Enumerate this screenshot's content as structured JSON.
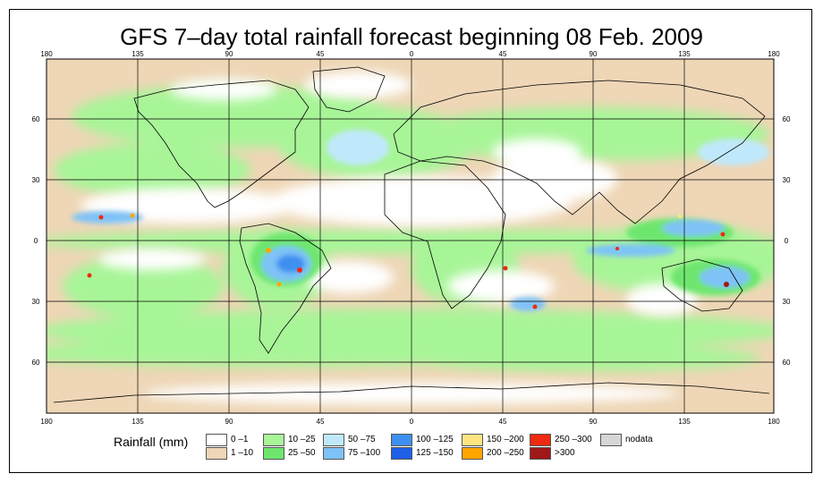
{
  "title": "GFS 7–day total rainfall forecast beginning 08 Feb. 2009",
  "axes": {
    "top_ticks": [
      "180",
      "135",
      "90",
      "45",
      "0",
      "45",
      "90",
      "135",
      "180"
    ],
    "bottom_ticks": [
      "180",
      "135",
      "90",
      "45",
      "0",
      "45",
      "90",
      "135",
      "180"
    ],
    "left_ticks": [
      "60",
      "30",
      "0",
      "30",
      "60"
    ],
    "right_ticks": [
      "60",
      "30",
      "0",
      "30",
      "60"
    ]
  },
  "legend": {
    "title": "Rainfall (mm)",
    "items": [
      {
        "label": "0 –1",
        "color": "#ffffff"
      },
      {
        "label": "1 –10",
        "color": "#eed6b6"
      },
      {
        "label": "10 –25",
        "color": "#a8f598"
      },
      {
        "label": "25 –50",
        "color": "#6ee66e"
      },
      {
        "label": "50 –75",
        "color": "#bfe9fb"
      },
      {
        "label": "75 –100",
        "color": "#7ec2f7"
      },
      {
        "label": "100 –125",
        "color": "#3e8ff0"
      },
      {
        "label": "125 –150",
        "color": "#1e5fe8"
      },
      {
        "label": "150 –200",
        "color": "#ffe580"
      },
      {
        "label": "200 –250",
        "color": "#ffa500"
      },
      {
        "label": "250 –300",
        "color": "#ee2a10"
      },
      {
        "label": ">300",
        "color": "#a01818"
      },
      {
        "label": "nodata",
        "color": "#d6d6d6"
      }
    ]
  }
}
